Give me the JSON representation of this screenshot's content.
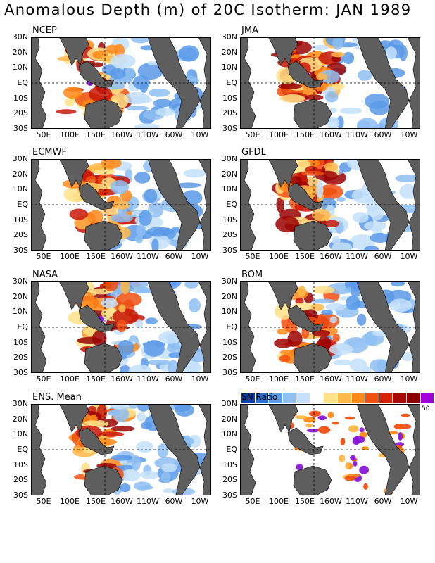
{
  "title": "Anomalous Depth (m) of 20C Isotherm: JAN 1989",
  "y_ticks": [
    "30N",
    "20N",
    "10N",
    "EQ",
    "10S",
    "20S",
    "30S"
  ],
  "x_ticks": [
    "50E",
    "100E",
    "150E",
    "160W",
    "110W",
    "60W",
    "10W"
  ],
  "panels": [
    {
      "label": "NCEP"
    },
    {
      "label": "JMA"
    },
    {
      "label": "ECMWF"
    },
    {
      "label": "GFDL"
    },
    {
      "label": "NASA"
    },
    {
      "label": "BOM"
    },
    {
      "label": "ENS. Mean"
    },
    {
      "label": ""
    }
  ],
  "legend": {
    "label": "SN Ratio",
    "max_value": "50",
    "colors": [
      "#0a3fb0",
      "#2a6fd6",
      "#5a9ae8",
      "#8ec0f2",
      "#c4e0fa",
      "#ffffff",
      "#ffe28a",
      "#ffb84a",
      "#ff8a1a",
      "#f05010",
      "#d82008",
      "#a80808",
      "#8a0000",
      "#a000d8"
    ]
  },
  "colors": {
    "land": "#5e5e5e",
    "ocean": "#ffffff",
    "warm": [
      "#ffe28a",
      "#ffb84a",
      "#ff8a1a",
      "#f05010",
      "#c81808",
      "#9a0404"
    ],
    "cool": [
      "#c4e0fa",
      "#8ec0f2",
      "#5a9ae8"
    ],
    "extreme": "#8a18d8"
  }
}
